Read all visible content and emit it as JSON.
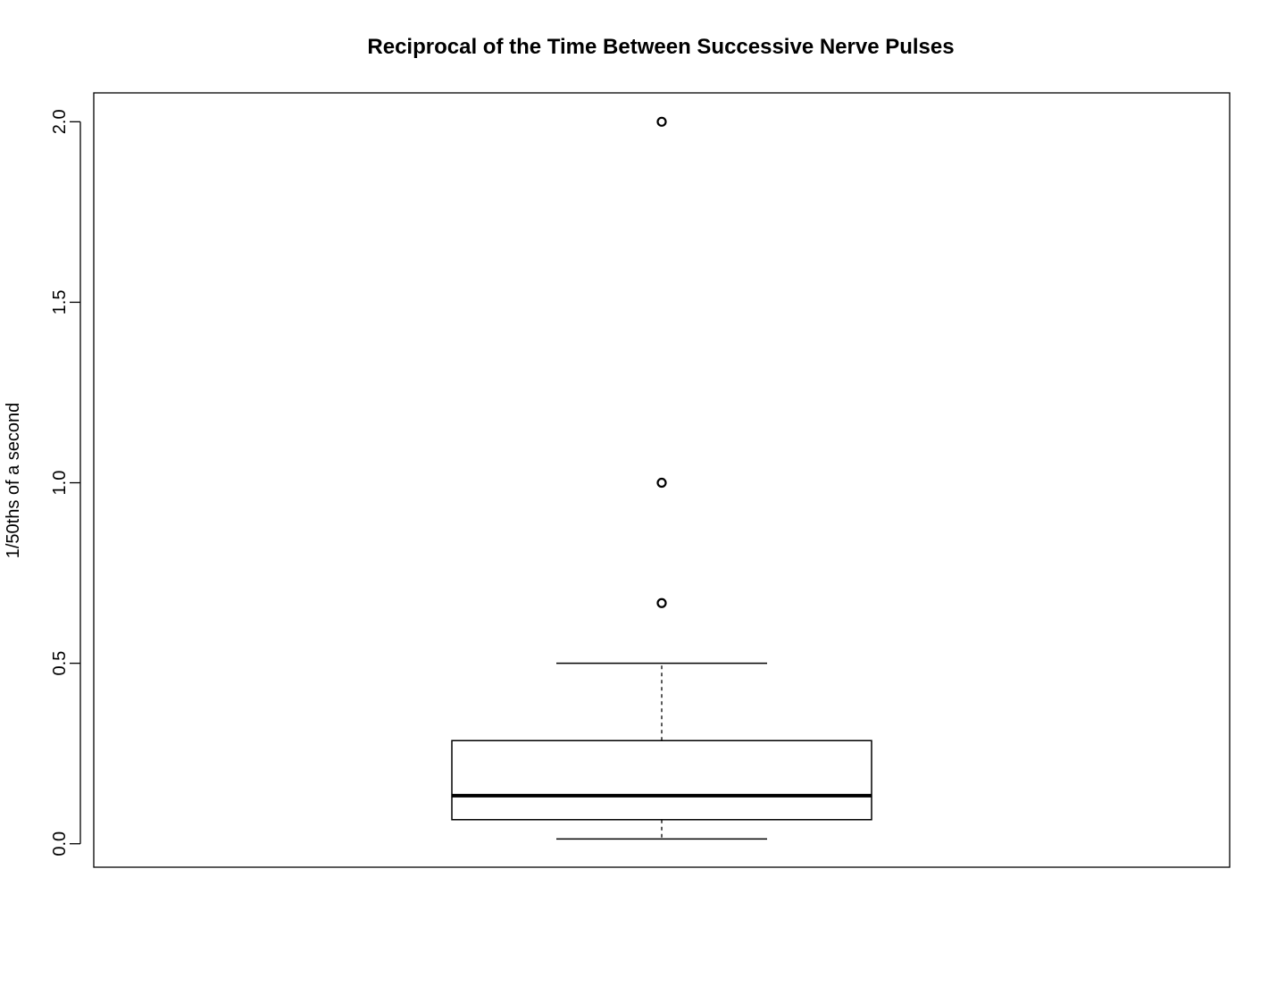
{
  "chart_data": {
    "type": "boxplot",
    "title": "Reciprocal of the Time Between Successive Nerve Pulses",
    "xlabel": "",
    "ylabel": "1/50ths of a second",
    "ylim": [
      -0.065,
      2.08
    ],
    "yticks": [
      0.0,
      0.5,
      1.0,
      1.5,
      2.0
    ],
    "ytick_labels": [
      "0.0",
      "0.5",
      "1.0",
      "1.5",
      "2.0"
    ],
    "grid": false,
    "box": {
      "whisker_low": 0.0133,
      "q1": 0.0667,
      "median": 0.1333,
      "q3": 0.2857,
      "whisker_high": 0.5
    },
    "outliers": [
      0.6667,
      1.0,
      2.0
    ]
  }
}
